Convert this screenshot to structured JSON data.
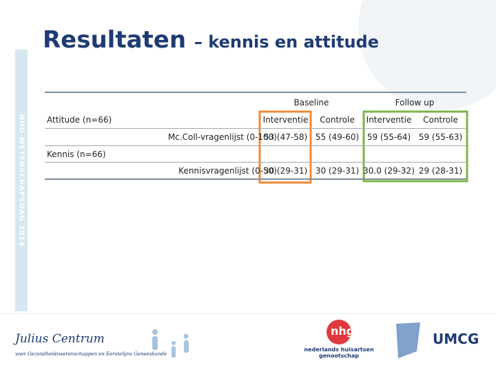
{
  "header": {
    "title": "Resultaten",
    "title_rest": "– kennis en attitude",
    "side_label": "NHG-Wetenschapsdag 2014"
  },
  "table": {
    "group_headers": [
      "Baseline",
      "Follow up"
    ],
    "column_headers": [
      "Interventie",
      "Controle",
      "Interventie",
      "Controle"
    ],
    "sections": [
      {
        "label": "Attitude (n=66)",
        "row_label": "Mc.Coll-vragenlijst (0-100)",
        "cells": [
          "53 (47-58)",
          "55 (49-60)",
          "59 (55-64)",
          "59 (55-63)"
        ]
      },
      {
        "label": "Kennis (n=66)",
        "row_label": "Kennisvragenlijst (0-50)",
        "cells": [
          "30 (29-31)",
          "30 (29-31)",
          "30.0 (29-32)",
          "29 (28-31)"
        ]
      }
    ]
  },
  "footer": {
    "julius": "Julius Centrum",
    "julius_sub": "voor Gezondheidswetenschappen en Eerstelijns Geneeskunde",
    "nhg": "nhg",
    "nhg_sub": "nederlands huisartsen genootschap",
    "umcg": "umcg"
  }
}
